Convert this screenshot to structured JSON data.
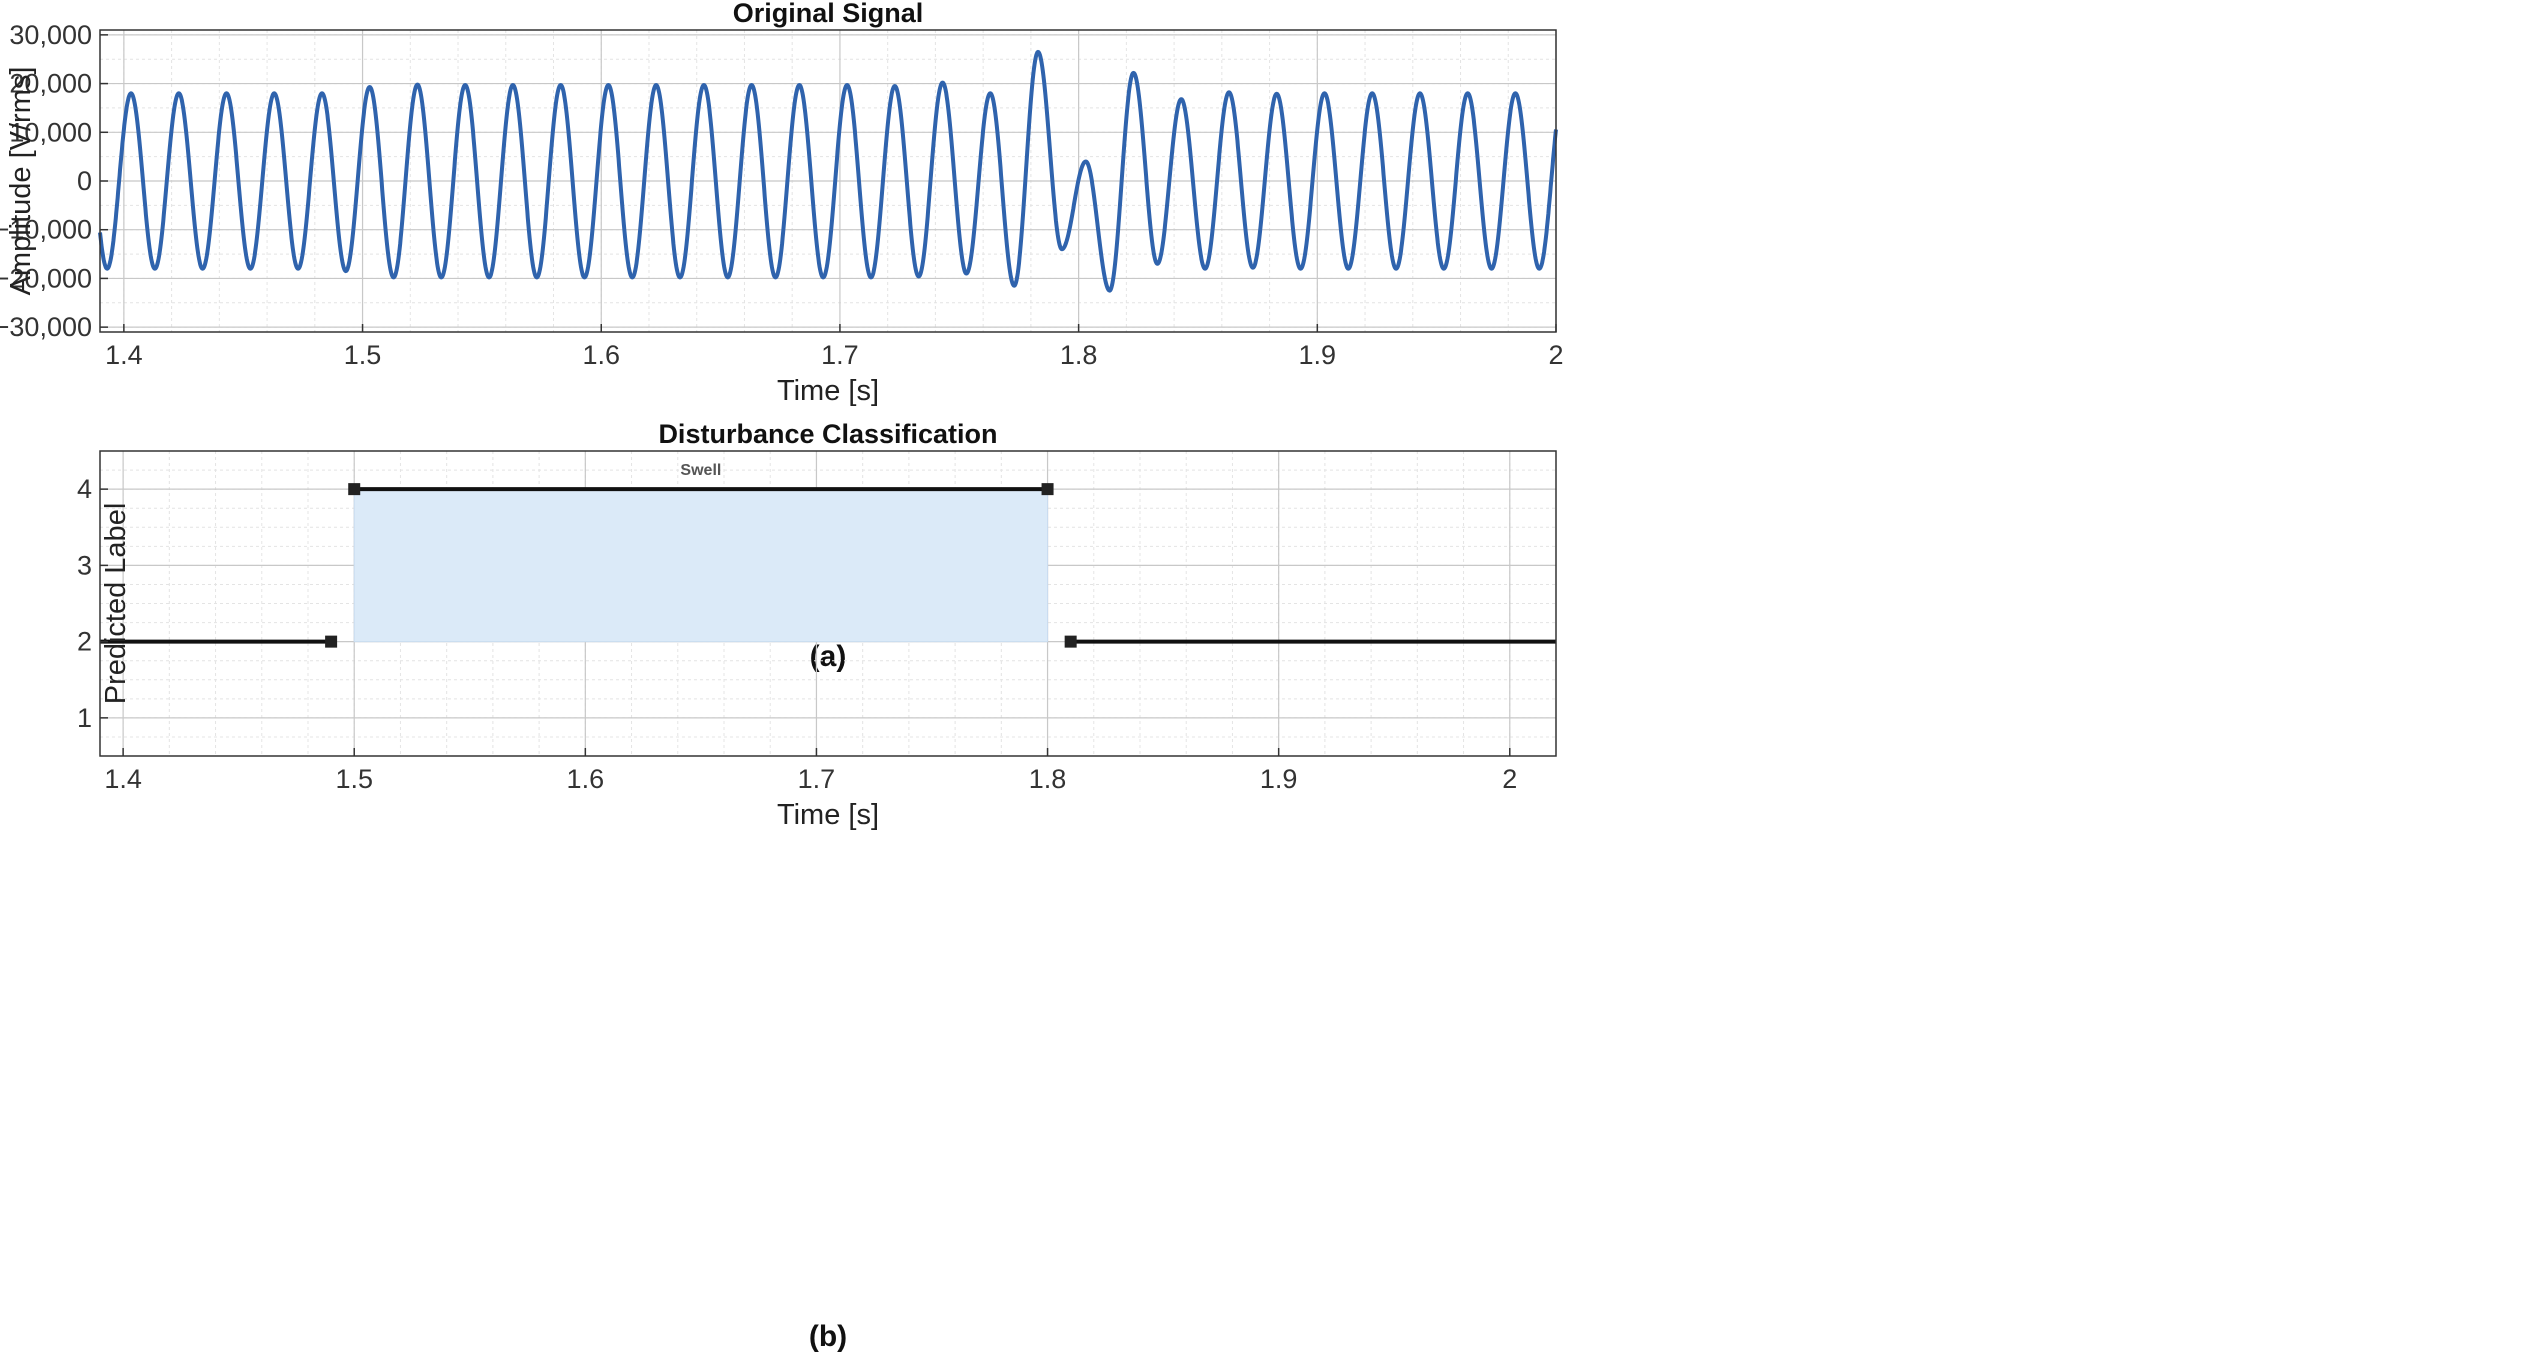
{
  "chart_data": [
    {
      "type": "line",
      "title": "Original Signal",
      "caption": "(a)",
      "xlabel": "Time [s]",
      "ylabel": "Amplitude [V/rms]",
      "xlim": [
        1.39,
        2.0
      ],
      "ylim": [
        -31000,
        31000
      ],
      "xticks": [
        1.4,
        1.5,
        1.6,
        1.7,
        1.8,
        1.9,
        2.0
      ],
      "xtick_labels": [
        "1.4",
        "1.5",
        "1.6",
        "1.7",
        "1.8",
        "1.9",
        "2"
      ],
      "yticks": [
        -30000,
        -20000,
        -10000,
        0,
        10000,
        20000,
        30000
      ],
      "ytick_labels": [
        "−30,000",
        "−20,000",
        "−10,000",
        "0",
        "10,000",
        "20,000",
        "30,000"
      ],
      "grid": true,
      "minor_grid": true,
      "color": "#2f63ad",
      "signal": {
        "frequency_hz": 50,
        "phase_peak_time": 1.403,
        "start_value": -8500,
        "end_value": 9000
      },
      "peaks": [
        {
          "x": 1.403,
          "y": 18000
        },
        {
          "x": 1.413,
          "y": -18000
        },
        {
          "x": 1.423,
          "y": 18000
        },
        {
          "x": 1.433,
          "y": -18000
        },
        {
          "x": 1.443,
          "y": 18000
        },
        {
          "x": 1.453,
          "y": -18000
        },
        {
          "x": 1.463,
          "y": 18000
        },
        {
          "x": 1.473,
          "y": -18000
        },
        {
          "x": 1.483,
          "y": 18000
        },
        {
          "x": 1.493,
          "y": -18500
        },
        {
          "x": 1.503,
          "y": 19300
        },
        {
          "x": 1.513,
          "y": -19800
        },
        {
          "x": 1.523,
          "y": 19800
        },
        {
          "x": 1.533,
          "y": -19800
        },
        {
          "x": 1.543,
          "y": 19700
        },
        {
          "x": 1.553,
          "y": -19800
        },
        {
          "x": 1.563,
          "y": 19700
        },
        {
          "x": 1.573,
          "y": -19800
        },
        {
          "x": 1.583,
          "y": 19700
        },
        {
          "x": 1.593,
          "y": -19800
        },
        {
          "x": 1.603,
          "y": 19700
        },
        {
          "x": 1.613,
          "y": -19800
        },
        {
          "x": 1.623,
          "y": 19700
        },
        {
          "x": 1.633,
          "y": -19800
        },
        {
          "x": 1.643,
          "y": 19700
        },
        {
          "x": 1.653,
          "y": -19800
        },
        {
          "x": 1.663,
          "y": 19700
        },
        {
          "x": 1.673,
          "y": -19800
        },
        {
          "x": 1.683,
          "y": 19700
        },
        {
          "x": 1.693,
          "y": -19800
        },
        {
          "x": 1.703,
          "y": 19700
        },
        {
          "x": 1.713,
          "y": -19800
        },
        {
          "x": 1.723,
          "y": 19500
        },
        {
          "x": 1.733,
          "y": -19600
        },
        {
          "x": 1.743,
          "y": 20200
        },
        {
          "x": 1.753,
          "y": -19000
        },
        {
          "x": 1.763,
          "y": 18000
        },
        {
          "x": 1.773,
          "y": -21500
        },
        {
          "x": 1.783,
          "y": 26500
        },
        {
          "x": 1.793,
          "y": -14000
        },
        {
          "x": 1.803,
          "y": 4000
        },
        {
          "x": 1.813,
          "y": -22500
        },
        {
          "x": 1.823,
          "y": 22200
        },
        {
          "x": 1.833,
          "y": -17000
        },
        {
          "x": 1.843,
          "y": 16800
        },
        {
          "x": 1.853,
          "y": -18000
        },
        {
          "x": 1.863,
          "y": 18200
        },
        {
          "x": 1.873,
          "y": -17800
        },
        {
          "x": 1.883,
          "y": 17900
        },
        {
          "x": 1.893,
          "y": -18000
        },
        {
          "x": 1.903,
          "y": 18000
        },
        {
          "x": 1.913,
          "y": -18000
        },
        {
          "x": 1.923,
          "y": 18000
        },
        {
          "x": 1.933,
          "y": -18000
        },
        {
          "x": 1.943,
          "y": 18000
        },
        {
          "x": 1.953,
          "y": -18000
        },
        {
          "x": 1.963,
          "y": 18000
        },
        {
          "x": 1.973,
          "y": -18000
        },
        {
          "x": 1.983,
          "y": 18000
        },
        {
          "x": 1.993,
          "y": -18000
        }
      ]
    },
    {
      "type": "line",
      "title": "Disturbance Classification",
      "caption": "(b)",
      "xlabel": "Time [s]",
      "ylabel": "Predicted Label",
      "xlim": [
        1.39,
        2.02
      ],
      "ylim": [
        0.5,
        4.5
      ],
      "xticks": [
        1.4,
        1.5,
        1.6,
        1.7,
        1.8,
        1.9,
        2.0
      ],
      "xtick_labels": [
        "1.4",
        "1.5",
        "1.6",
        "1.7",
        "1.8",
        "1.9",
        "2"
      ],
      "yticks": [
        1,
        2,
        3,
        4
      ],
      "ytick_labels": [
        "1",
        "2",
        "3",
        "4"
      ],
      "grid": true,
      "minor_grid": true,
      "segments": [
        {
          "x": [
            1.39,
            1.49
          ],
          "y": 2
        },
        {
          "x": [
            1.5,
            1.8
          ],
          "y": 4
        },
        {
          "x": [
            1.81,
            2.02
          ],
          "y": 2
        }
      ],
      "markers": [
        {
          "x": 1.49,
          "y": 2
        },
        {
          "x": 1.5,
          "y": 4
        },
        {
          "x": 1.8,
          "y": 4
        },
        {
          "x": 1.81,
          "y": 2
        }
      ],
      "shaded_region": {
        "x": [
          1.5,
          1.8
        ],
        "y": [
          2,
          4
        ],
        "color": "#dbeaf8"
      },
      "annotations": [
        {
          "text": "Swell",
          "x": 1.65,
          "y": 4
        }
      ],
      "line_color": "#111111"
    }
  ]
}
